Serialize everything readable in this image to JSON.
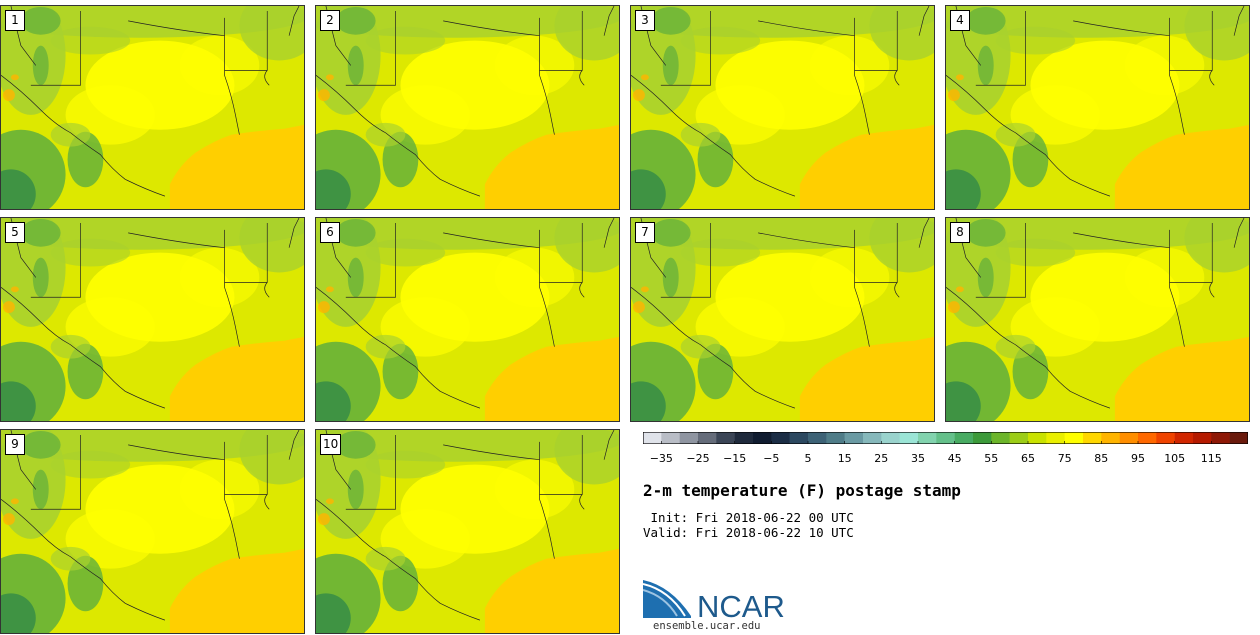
{
  "panels": [
    {
      "label": "1"
    },
    {
      "label": "2"
    },
    {
      "label": "3"
    },
    {
      "label": "4"
    },
    {
      "label": "5"
    },
    {
      "label": "6"
    },
    {
      "label": "7"
    },
    {
      "label": "8"
    },
    {
      "label": "9"
    },
    {
      "label": "10"
    }
  ],
  "colorbar": {
    "colors": [
      "#e0e3ea",
      "#b9bdc6",
      "#8f95a1",
      "#656c7a",
      "#3b4556",
      "#1f2a3c",
      "#101c30",
      "#1b2d45",
      "#2c4860",
      "#3d6276",
      "#4f7c88",
      "#6a9aa3",
      "#86b8bb",
      "#9ad3cd",
      "#9be5d6",
      "#82d3ae",
      "#64c08a",
      "#48ab62",
      "#3c9a3a",
      "#6cb52a",
      "#9ccd17",
      "#c9e200",
      "#eaef00",
      "#ffff00",
      "#ffd700",
      "#ffb400",
      "#ff8e00",
      "#ff6800",
      "#ef4300",
      "#d12600",
      "#b51a00",
      "#8e1806",
      "#6a1a0c"
    ],
    "ticks": [
      "−35",
      "−25",
      "−15",
      "−5",
      "5",
      "15",
      "25",
      "35",
      "45",
      "55",
      "65",
      "75",
      "85",
      "95",
      "105",
      "115"
    ],
    "range": [
      -40,
      125
    ]
  },
  "title": "2-m temperature (F) postage stamp",
  "init": " Init: Fri 2018-06-22 00 UTC",
  "valid": "Valid: Fri 2018-06-22 10 UTC",
  "logo": {
    "text": "NCAR",
    "url": "ensemble.ucar.edu",
    "color": "#1e5a8c"
  },
  "map_colors": {
    "land_base": "#dde800",
    "warm": "#ffff00",
    "cool": "#a9d12d",
    "cooler": "#5fae3c",
    "coolest": "#3a8f45",
    "hot": "#ffb400",
    "gulf": "#ffcf00",
    "border": "#222222"
  }
}
